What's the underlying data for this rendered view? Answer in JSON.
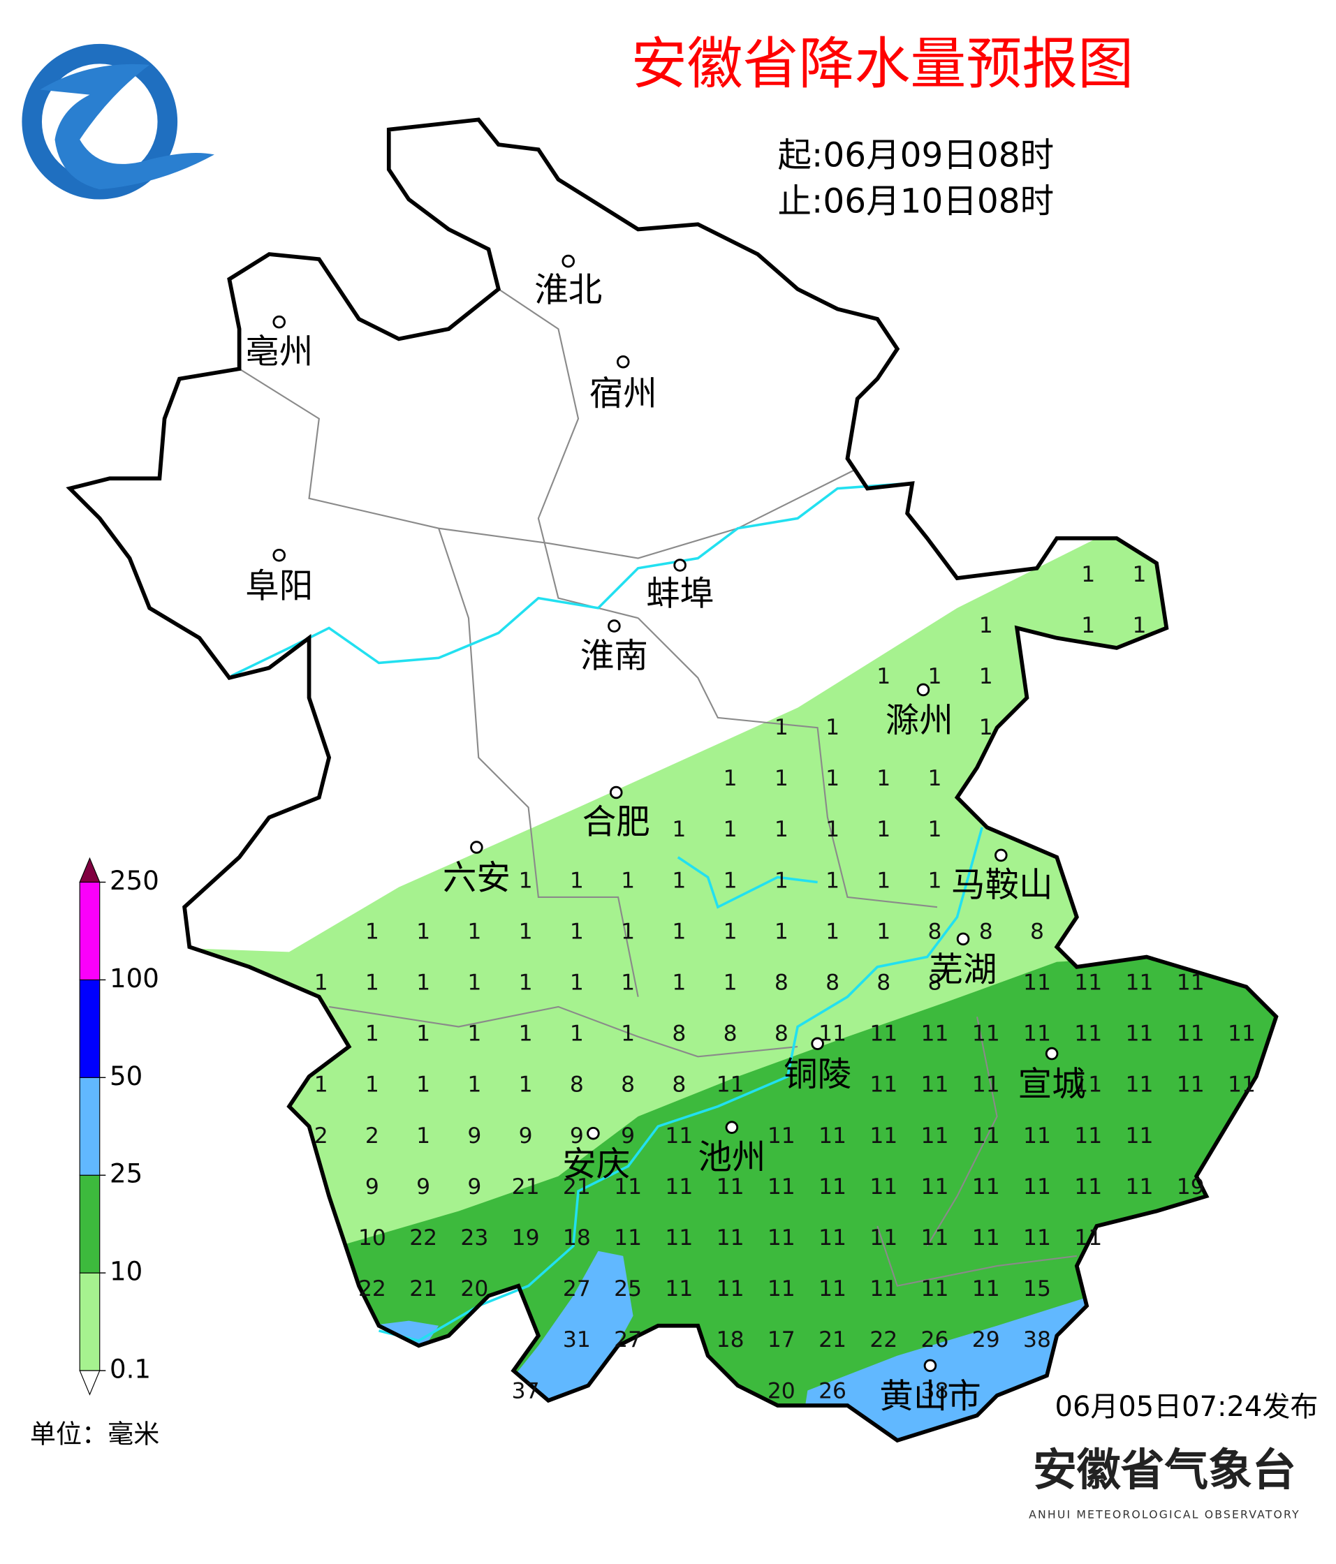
{
  "header": {
    "title": "安徽省降水量预报图",
    "start": "起:06月09日08时",
    "end": "止:06月10日08时"
  },
  "cities": [
    "淮北",
    "亳州",
    "宿州",
    "阜阳",
    "蚌埠",
    "淮南",
    "滁州",
    "合肥",
    "六安",
    "马鞍山",
    "芜湖",
    "铜陵",
    "宣城",
    "池州",
    "安庆",
    "黄山市"
  ],
  "station_values": [
    [
      null,
      null,
      null,
      null,
      null,
      null,
      null,
      null,
      null,
      null,
      null,
      null,
      null,
      null,
      null,
      1,
      1,
      null,
      null
    ],
    [
      null,
      null,
      null,
      null,
      null,
      null,
      null,
      null,
      null,
      null,
      null,
      null,
      null,
      1,
      null,
      1,
      1,
      null,
      null
    ],
    [
      null,
      null,
      null,
      null,
      null,
      null,
      null,
      null,
      null,
      null,
      null,
      1,
      1,
      1,
      null,
      null,
      null,
      null,
      null
    ],
    [
      null,
      null,
      null,
      null,
      null,
      null,
      null,
      null,
      null,
      1,
      1,
      null,
      null,
      1,
      null,
      null,
      null,
      null,
      null
    ],
    [
      null,
      null,
      null,
      null,
      null,
      null,
      null,
      null,
      1,
      1,
      1,
      1,
      1,
      null,
      null,
      null,
      null,
      null,
      null
    ],
    [
      null,
      null,
      null,
      null,
      null,
      null,
      null,
      1,
      1,
      1,
      1,
      1,
      1,
      null,
      null,
      null,
      null,
      null,
      null
    ],
    [
      null,
      null,
      null,
      null,
      1,
      1,
      1,
      1,
      1,
      1,
      1,
      1,
      1,
      null,
      null,
      null,
      null,
      null,
      null
    ],
    [
      null,
      1,
      1,
      1,
      1,
      1,
      1,
      1,
      1,
      1,
      1,
      1,
      8,
      8,
      8,
      null,
      null,
      null,
      null
    ],
    [
      1,
      1,
      1,
      1,
      1,
      1,
      1,
      1,
      1,
      8,
      8,
      8,
      8,
      null,
      11,
      11,
      11,
      11,
      null
    ],
    [
      null,
      1,
      1,
      1,
      1,
      1,
      1,
      8,
      8,
      8,
      11,
      11,
      11,
      11,
      11,
      11,
      11,
      11,
      11
    ],
    [
      1,
      1,
      1,
      1,
      1,
      8,
      8,
      8,
      11,
      null,
      null,
      11,
      11,
      11,
      null,
      11,
      11,
      11,
      11
    ],
    [
      2,
      2,
      1,
      9,
      9,
      9,
      9,
      11,
      null,
      11,
      11,
      11,
      11,
      11,
      11,
      11,
      11,
      null,
      null
    ],
    [
      null,
      9,
      9,
      9,
      21,
      21,
      11,
      11,
      11,
      11,
      11,
      11,
      11,
      11,
      11,
      11,
      11,
      19,
      null
    ],
    [
      null,
      10,
      22,
      23,
      19,
      18,
      11,
      11,
      11,
      11,
      11,
      11,
      11,
      11,
      11,
      11,
      null,
      null,
      null
    ],
    [
      null,
      22,
      21,
      20,
      null,
      27,
      25,
      11,
      11,
      11,
      11,
      11,
      11,
      11,
      15,
      null,
      null,
      null,
      null
    ],
    [
      null,
      null,
      null,
      null,
      null,
      31,
      27,
      null,
      18,
      17,
      21,
      22,
      26,
      29,
      38,
      null,
      null,
      null,
      null
    ],
    [
      null,
      null,
      null,
      null,
      37,
      null,
      null,
      null,
      null,
      20,
      26,
      null,
      38,
      null,
      null,
      null,
      null,
      null,
      null
    ]
  ],
  "legend": {
    "ticks": [
      0.1,
      10,
      25,
      50,
      100,
      250
    ],
    "colors": [
      "#a6f28f",
      "#3dba3d",
      "#61b8ff",
      "#0000fe",
      "#fa00fa"
    ],
    "over_color": "#800040"
  },
  "unit": "单位：毫米",
  "issued": "06月05日07:24发布",
  "agency": {
    "name": "安徽省气象台",
    "english": "ANHUI METEOROLOGICAL OBSERVATORY"
  }
}
